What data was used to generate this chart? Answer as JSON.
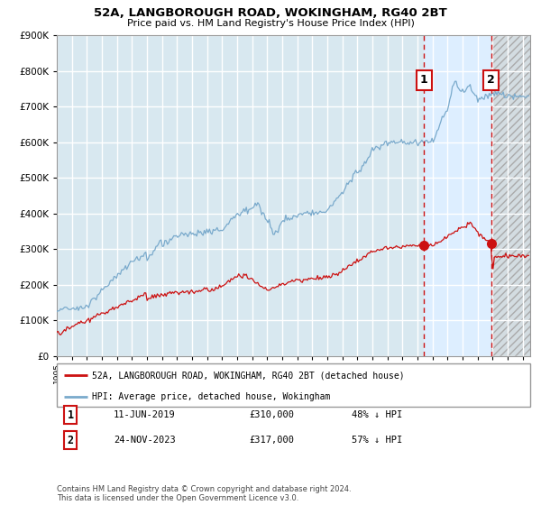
{
  "title1": "52A, LANGBOROUGH ROAD, WOKINGHAM, RG40 2BT",
  "title2": "Price paid vs. HM Land Registry's House Price Index (HPI)",
  "legend_label1": "52A, LANGBOROUGH ROAD, WOKINGHAM, RG40 2BT (detached house)",
  "legend_label2": "HPI: Average price, detached house, Wokingham",
  "note1_num": "1",
  "note1_date": "11-JUN-2019",
  "note1_price": "£310,000",
  "note1_hpi": "48% ↓ HPI",
  "note2_num": "2",
  "note2_date": "24-NOV-2023",
  "note2_price": "£317,000",
  "note2_hpi": "57% ↓ HPI",
  "footer": "Contains HM Land Registry data © Crown copyright and database right 2024.\nThis data is licensed under the Open Government Licence v3.0.",
  "plot_bg": "#d8e8f0",
  "grid_color": "#ffffff",
  "hpi_color": "#7aaacc",
  "price_color": "#cc1111",
  "marker_color": "#cc1111",
  "vline_color": "#cc1111",
  "highlight_color": "#ddeeff",
  "ylim": [
    0,
    900000
  ],
  "yticks": [
    0,
    100000,
    200000,
    300000,
    400000,
    500000,
    600000,
    700000,
    800000,
    900000
  ],
  "xmin": 1995,
  "xmax": 2026.5,
  "sale1_year": 2019.44,
  "sale2_year": 2023.9,
  "sale1_price": 310000,
  "sale2_price": 317000
}
